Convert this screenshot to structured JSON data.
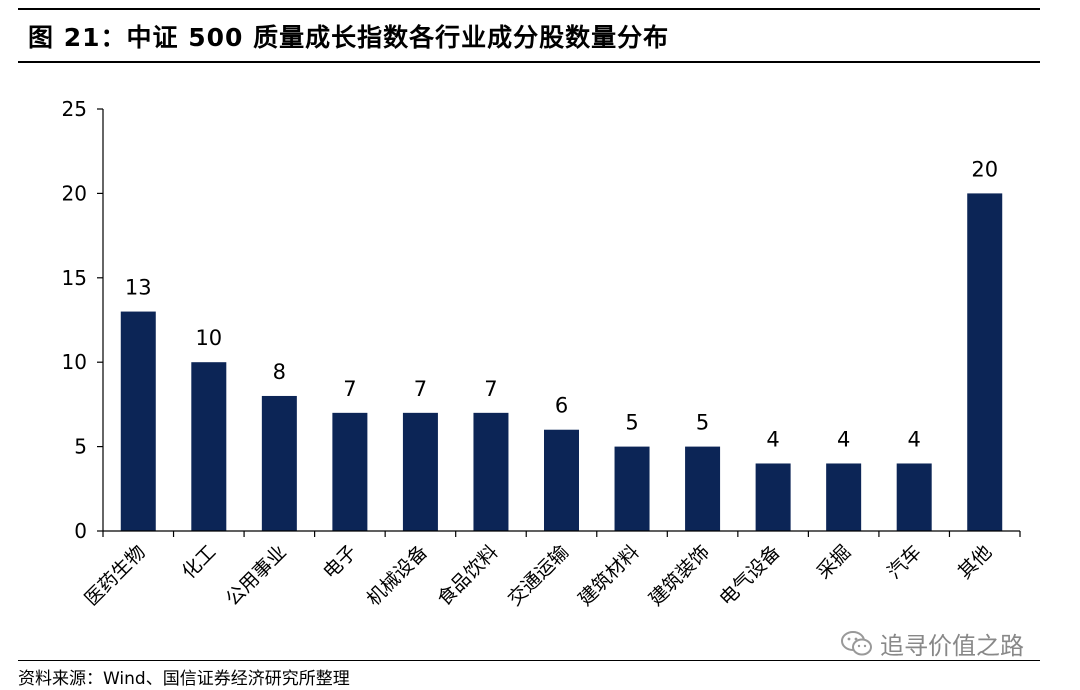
{
  "title": "图 21：中证 500 质量成长指数各行业成分股数量分布",
  "source": "资料来源：Wind、国信证券经济研究所整理",
  "watermark": {
    "text": "追寻价值之路",
    "icon": "wechat-icon"
  },
  "colors": {
    "bar": "#0c2556",
    "axis": "#000000"
  },
  "chart_data": {
    "type": "bar",
    "title": "中证 500 质量成长指数各行业成分股数量分布",
    "categories": [
      "医药生物",
      "化工",
      "公用事业",
      "电子",
      "机械设备",
      "食品饮料",
      "交通运输",
      "建筑材料",
      "建筑装饰",
      "电气设备",
      "采掘",
      "汽车",
      "其他"
    ],
    "values": [
      13,
      10,
      8,
      7,
      7,
      7,
      6,
      5,
      5,
      4,
      4,
      4,
      20
    ],
    "xlabel": "",
    "ylabel": "",
    "ylim": [
      0,
      25
    ],
    "yticks": [
      0,
      5,
      10,
      15,
      20,
      25
    ],
    "data_labels": true,
    "grid": false,
    "legend": "none"
  }
}
